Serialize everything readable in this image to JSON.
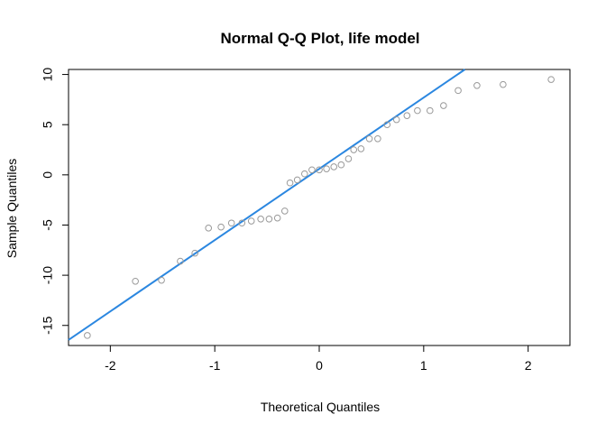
{
  "chart_data": {
    "type": "scatter",
    "title": "Normal Q-Q Plot, life model",
    "xlabel": "Theoretical Quantiles",
    "ylabel": "Sample Quantiles",
    "xlim": [
      -2.4,
      2.4
    ],
    "ylim": [
      -17,
      10.5
    ],
    "xticks": [
      -2,
      -1,
      0,
      1,
      2
    ],
    "yticks": [
      -15,
      -10,
      -5,
      0,
      5,
      10
    ],
    "point_color": "#999999",
    "line_color": "#2b87e0",
    "reference_line": {
      "intercept": 0.6,
      "slope": 7.1
    },
    "points": [
      {
        "x": -2.22,
        "y": -16.0
      },
      {
        "x": -1.76,
        "y": -10.6
      },
      {
        "x": -1.51,
        "y": -10.5
      },
      {
        "x": -1.33,
        "y": -8.6
      },
      {
        "x": -1.19,
        "y": -7.8
      },
      {
        "x": -1.06,
        "y": -5.3
      },
      {
        "x": -0.94,
        "y": -5.2
      },
      {
        "x": -0.84,
        "y": -4.8
      },
      {
        "x": -0.74,
        "y": -4.8
      },
      {
        "x": -0.65,
        "y": -4.6
      },
      {
        "x": -0.56,
        "y": -4.4
      },
      {
        "x": -0.48,
        "y": -4.4
      },
      {
        "x": -0.4,
        "y": -4.3
      },
      {
        "x": -0.33,
        "y": -3.6
      },
      {
        "x": -0.28,
        "y": -0.8
      },
      {
        "x": -0.21,
        "y": -0.5
      },
      {
        "x": -0.14,
        "y": 0.1
      },
      {
        "x": -0.07,
        "y": 0.5
      },
      {
        "x": 0.0,
        "y": 0.5
      },
      {
        "x": 0.07,
        "y": 0.6
      },
      {
        "x": 0.14,
        "y": 0.8
      },
      {
        "x": 0.21,
        "y": 1.0
      },
      {
        "x": 0.28,
        "y": 1.6
      },
      {
        "x": 0.33,
        "y": 2.5
      },
      {
        "x": 0.4,
        "y": 2.6
      },
      {
        "x": 0.48,
        "y": 3.6
      },
      {
        "x": 0.56,
        "y": 3.6
      },
      {
        "x": 0.65,
        "y": 5.0
      },
      {
        "x": 0.74,
        "y": 5.5
      },
      {
        "x": 0.84,
        "y": 5.9
      },
      {
        "x": 0.94,
        "y": 6.4
      },
      {
        "x": 1.06,
        "y": 6.4
      },
      {
        "x": 1.19,
        "y": 6.9
      },
      {
        "x": 1.33,
        "y": 8.4
      },
      {
        "x": 1.51,
        "y": 8.9
      },
      {
        "x": 1.76,
        "y": 9.0
      },
      {
        "x": 2.22,
        "y": 9.5
      }
    ]
  }
}
